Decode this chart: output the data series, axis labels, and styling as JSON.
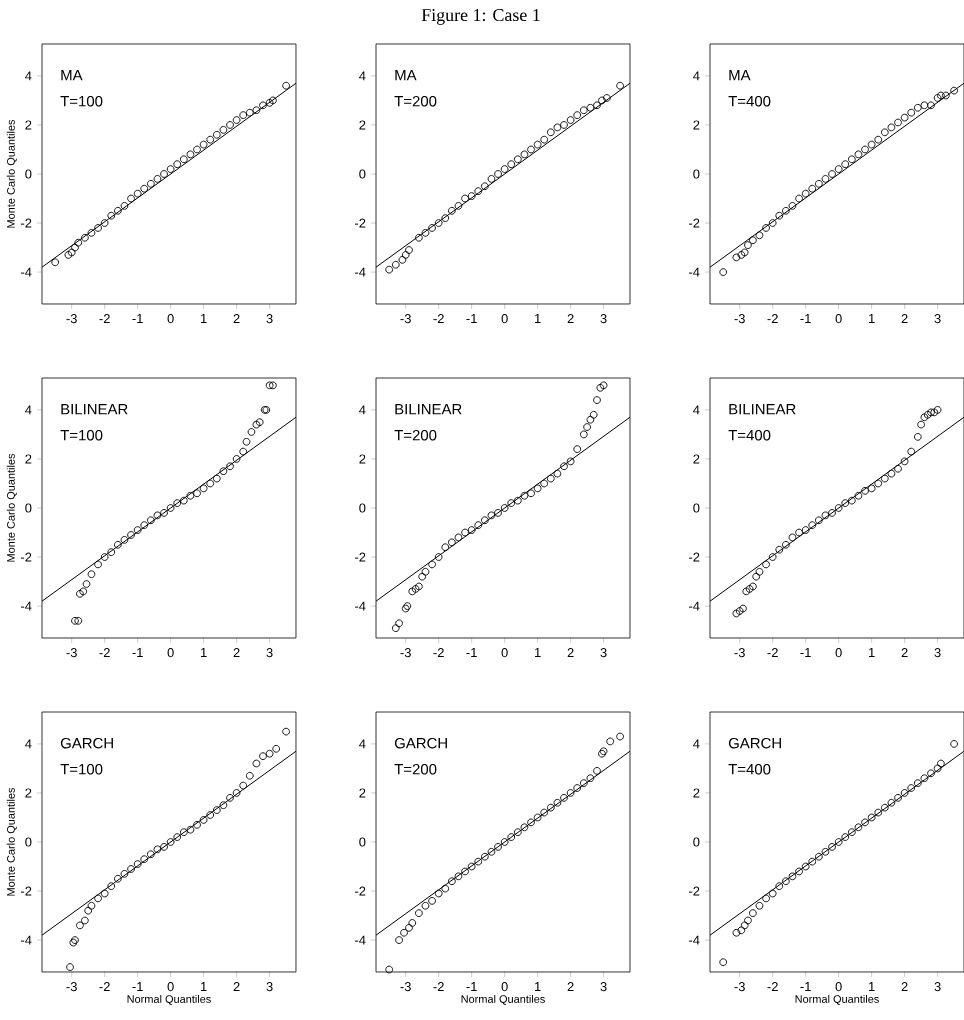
{
  "chart_data": [
    {
      "type": "scatter",
      "ylabel": "Monte Carlo Quantiles",
      "annotations": [
        "MA",
        "T=100"
      ],
      "grid": false,
      "xlim": [
        -3.9,
        3.8
      ],
      "ylim": [
        -5.3,
        5.3
      ],
      "xticks": [
        -3,
        -2,
        -1,
        0,
        1,
        2,
        3
      ],
      "yticks": [
        -4,
        -2,
        0,
        2,
        4
      ],
      "series": [
        {
          "marker": "circle",
          "color": "#000000",
          "x": [
            -3.5,
            -3.1,
            -3.0,
            -2.9,
            -2.8,
            -2.6,
            -2.4,
            -2.2,
            -2.0,
            -1.8,
            -1.6,
            -1.4,
            -1.2,
            -1.0,
            -0.8,
            -0.6,
            -0.4,
            -0.2,
            0,
            0.2,
            0.4,
            0.6,
            0.8,
            1.0,
            1.2,
            1.4,
            1.6,
            1.8,
            2.0,
            2.2,
            2.4,
            2.6,
            2.8,
            3.0,
            3.1,
            3.5
          ],
          "values": [
            -3.6,
            -3.3,
            -3.2,
            -3.0,
            -2.8,
            -2.6,
            -2.4,
            -2.2,
            -2.0,
            -1.7,
            -1.5,
            -1.3,
            -1.0,
            -0.8,
            -0.6,
            -0.4,
            -0.2,
            0,
            0.2,
            0.4,
            0.6,
            0.8,
            1.0,
            1.2,
            1.4,
            1.6,
            1.8,
            2.0,
            2.2,
            2.4,
            2.5,
            2.6,
            2.8,
            2.9,
            3.0,
            3.6
          ]
        },
        {
          "type": "line",
          "marker": "none",
          "color": "#000000",
          "x": [
            -3.9,
            3.8
          ],
          "values": [
            -3.8,
            3.7
          ]
        }
      ]
    },
    {
      "type": "scatter",
      "title": "Figure 1: Case 1",
      "annotations": [
        "MA",
        "T=200"
      ],
      "grid": false,
      "xlim": [
        -3.9,
        3.8
      ],
      "ylim": [
        -5.3,
        5.3
      ],
      "xticks": [
        -3,
        -2,
        -1,
        0,
        1,
        2,
        3
      ],
      "yticks": [
        -4,
        -2,
        0,
        2,
        4
      ],
      "series": [
        {
          "marker": "circle",
          "color": "#000000",
          "x": [
            -3.5,
            -3.3,
            -3.1,
            -3.0,
            -2.9,
            -2.6,
            -2.4,
            -2.2,
            -2.0,
            -1.8,
            -1.6,
            -1.4,
            -1.2,
            -1.0,
            -0.8,
            -0.6,
            -0.4,
            -0.2,
            0,
            0.2,
            0.4,
            0.6,
            0.8,
            1.0,
            1.2,
            1.4,
            1.6,
            1.8,
            2.0,
            2.2,
            2.4,
            2.6,
            2.8,
            2.95,
            3.1,
            3.5
          ],
          "values": [
            -3.9,
            -3.7,
            -3.5,
            -3.3,
            -3.1,
            -2.6,
            -2.4,
            -2.2,
            -2.0,
            -1.8,
            -1.5,
            -1.3,
            -1.0,
            -0.9,
            -0.7,
            -0.5,
            -0.2,
            0,
            0.2,
            0.4,
            0.6,
            0.8,
            1.0,
            1.2,
            1.4,
            1.7,
            1.9,
            2.0,
            2.2,
            2.4,
            2.6,
            2.7,
            2.8,
            3.0,
            3.1,
            3.6
          ]
        },
        {
          "type": "line",
          "marker": "none",
          "color": "#000000",
          "x": [
            -3.9,
            3.8
          ],
          "values": [
            -3.8,
            3.7
          ]
        }
      ]
    },
    {
      "type": "scatter",
      "annotations": [
        "MA",
        "T=400"
      ],
      "grid": false,
      "xlim": [
        -3.9,
        3.8
      ],
      "ylim": [
        -5.3,
        5.3
      ],
      "xticks": [
        -3,
        -2,
        -1,
        0,
        1,
        2,
        3
      ],
      "yticks": [
        -4,
        -2,
        0,
        2,
        4
      ],
      "series": [
        {
          "marker": "circle",
          "color": "#000000",
          "x": [
            -3.5,
            -3.1,
            -2.95,
            -2.85,
            -2.75,
            -2.6,
            -2.4,
            -2.2,
            -2.0,
            -1.8,
            -1.6,
            -1.4,
            -1.2,
            -1.0,
            -0.8,
            -0.6,
            -0.4,
            -0.2,
            0,
            0.2,
            0.4,
            0.6,
            0.8,
            1.0,
            1.2,
            1.4,
            1.6,
            1.8,
            2.0,
            2.2,
            2.4,
            2.6,
            2.8,
            3.0,
            3.1,
            3.25,
            3.5
          ],
          "values": [
            -4.0,
            -3.4,
            -3.3,
            -3.2,
            -2.9,
            -2.7,
            -2.5,
            -2.2,
            -2.0,
            -1.7,
            -1.5,
            -1.3,
            -1.0,
            -0.8,
            -0.6,
            -0.4,
            -0.2,
            0,
            0.2,
            0.4,
            0.6,
            0.8,
            1.0,
            1.2,
            1.4,
            1.7,
            1.9,
            2.1,
            2.3,
            2.5,
            2.7,
            2.8,
            2.8,
            3.1,
            3.2,
            3.2,
            3.4
          ]
        },
        {
          "type": "line",
          "marker": "none",
          "color": "#000000",
          "x": [
            -3.9,
            3.8
          ],
          "values": [
            -3.8,
            3.7
          ]
        }
      ]
    },
    {
      "type": "scatter",
      "ylabel": "Monte Carlo Quantiles",
      "annotations": [
        "BILINEAR",
        "T=100"
      ],
      "grid": false,
      "xlim": [
        -3.9,
        3.8
      ],
      "ylim": [
        -5.3,
        5.3
      ],
      "xticks": [
        -3,
        -2,
        -1,
        0,
        1,
        2,
        3
      ],
      "yticks": [
        -4,
        -2,
        0,
        2,
        4
      ],
      "series": [
        {
          "marker": "circle",
          "color": "#000000",
          "x": [
            -2.9,
            -2.8,
            -2.75,
            -2.65,
            -2.55,
            -2.4,
            -2.2,
            -2.0,
            -1.8,
            -1.6,
            -1.4,
            -1.2,
            -1.0,
            -0.8,
            -0.6,
            -0.4,
            -0.2,
            0,
            0.2,
            0.4,
            0.6,
            0.8,
            1.0,
            1.2,
            1.4,
            1.6,
            1.8,
            2.0,
            2.2,
            2.3,
            2.45,
            2.6,
            2.7,
            2.85,
            2.9,
            3.0,
            3.1
          ],
          "values": [
            -4.6,
            -4.6,
            -3.5,
            -3.4,
            -3.1,
            -2.7,
            -2.3,
            -2.0,
            -1.8,
            -1.5,
            -1.3,
            -1.1,
            -0.9,
            -0.7,
            -0.5,
            -0.3,
            -0.2,
            0,
            0.2,
            0.3,
            0.5,
            0.6,
            0.8,
            1.0,
            1.2,
            1.5,
            1.7,
            2.0,
            2.3,
            2.7,
            3.1,
            3.4,
            3.5,
            4.0,
            4.0,
            5.0,
            5.0
          ]
        },
        {
          "type": "line",
          "marker": "none",
          "color": "#000000",
          "x": [
            -3.9,
            3.8
          ],
          "values": [
            -3.8,
            3.7
          ]
        }
      ]
    },
    {
      "type": "scatter",
      "annotations": [
        "BILINEAR",
        "T=200"
      ],
      "grid": false,
      "xlim": [
        -3.9,
        3.8
      ],
      "ylim": [
        -5.3,
        5.3
      ],
      "xticks": [
        -3,
        -2,
        -1,
        0,
        1,
        2,
        3
      ],
      "yticks": [
        -4,
        -2,
        0,
        2,
        4
      ],
      "series": [
        {
          "marker": "circle",
          "color": "#000000",
          "x": [
            -3.3,
            -3.2,
            -3.0,
            -2.95,
            -2.8,
            -2.7,
            -2.6,
            -2.5,
            -2.4,
            -2.2,
            -2.0,
            -1.8,
            -1.6,
            -1.4,
            -1.2,
            -1.0,
            -0.8,
            -0.6,
            -0.4,
            -0.2,
            0,
            0.2,
            0.4,
            0.6,
            0.8,
            1.0,
            1.2,
            1.4,
            1.6,
            1.8,
            2.0,
            2.2,
            2.4,
            2.5,
            2.6,
            2.7,
            2.8,
            2.9,
            3.0
          ],
          "values": [
            -4.9,
            -4.7,
            -4.1,
            -4.0,
            -3.4,
            -3.3,
            -3.2,
            -2.8,
            -2.6,
            -2.3,
            -2.0,
            -1.6,
            -1.4,
            -1.2,
            -1.0,
            -0.9,
            -0.7,
            -0.5,
            -0.3,
            -0.2,
            0,
            0.2,
            0.3,
            0.5,
            0.6,
            0.8,
            1.0,
            1.2,
            1.4,
            1.7,
            1.9,
            2.4,
            3.0,
            3.3,
            3.6,
            3.8,
            4.4,
            4.9,
            5.0
          ]
        },
        {
          "type": "line",
          "marker": "none",
          "color": "#000000",
          "x": [
            -3.9,
            3.8
          ],
          "values": [
            -3.8,
            3.7
          ]
        }
      ]
    },
    {
      "type": "scatter",
      "annotations": [
        "BILINEAR",
        "T=400"
      ],
      "grid": false,
      "xlim": [
        -3.9,
        3.8
      ],
      "ylim": [
        -5.3,
        5.3
      ],
      "xticks": [
        -3,
        -2,
        -1,
        0,
        1,
        2,
        3
      ],
      "yticks": [
        -4,
        -2,
        0,
        2,
        4
      ],
      "series": [
        {
          "marker": "circle",
          "color": "#000000",
          "x": [
            -3.1,
            -3.0,
            -2.9,
            -2.8,
            -2.7,
            -2.6,
            -2.5,
            -2.4,
            -2.2,
            -2.0,
            -1.8,
            -1.6,
            -1.4,
            -1.2,
            -1.0,
            -0.8,
            -0.6,
            -0.4,
            -0.2,
            0,
            0.2,
            0.4,
            0.6,
            0.8,
            1.0,
            1.2,
            1.4,
            1.6,
            1.8,
            2.0,
            2.2,
            2.4,
            2.5,
            2.6,
            2.7,
            2.8,
            2.9,
            3.0
          ],
          "values": [
            -4.3,
            -4.2,
            -4.1,
            -3.4,
            -3.3,
            -3.2,
            -2.8,
            -2.6,
            -2.3,
            -2.0,
            -1.7,
            -1.5,
            -1.2,
            -1.0,
            -0.9,
            -0.7,
            -0.5,
            -0.3,
            -0.2,
            0,
            0.2,
            0.3,
            0.5,
            0.7,
            0.8,
            1.0,
            1.2,
            1.4,
            1.6,
            1.9,
            2.3,
            2.9,
            3.4,
            3.7,
            3.8,
            3.9,
            3.9,
            4.0
          ]
        },
        {
          "type": "line",
          "marker": "none",
          "color": "#000000",
          "x": [
            -3.9,
            3.8
          ],
          "values": [
            -3.8,
            3.7
          ]
        }
      ]
    },
    {
      "type": "scatter",
      "xlabel": "Normal Quantiles",
      "ylabel": "Monte Carlo Quantiles",
      "annotations": [
        "GARCH",
        "T=100"
      ],
      "grid": false,
      "xlim": [
        -3.9,
        3.8
      ],
      "ylim": [
        -5.3,
        5.3
      ],
      "xticks": [
        -3,
        -2,
        -1,
        0,
        1,
        2,
        3
      ],
      "yticks": [
        -4,
        -2,
        0,
        2,
        4
      ],
      "series": [
        {
          "marker": "circle",
          "color": "#000000",
          "x": [
            -3.05,
            -2.95,
            -2.9,
            -2.75,
            -2.6,
            -2.5,
            -2.4,
            -2.2,
            -2.0,
            -1.8,
            -1.6,
            -1.4,
            -1.2,
            -1.0,
            -0.8,
            -0.6,
            -0.4,
            -0.2,
            0,
            0.2,
            0.4,
            0.6,
            0.8,
            1.0,
            1.2,
            1.4,
            1.6,
            1.8,
            2.0,
            2.2,
            2.4,
            2.6,
            2.8,
            3.0,
            3.2,
            3.5
          ],
          "values": [
            -5.1,
            -4.1,
            -4.0,
            -3.4,
            -3.2,
            -2.8,
            -2.6,
            -2.3,
            -2.1,
            -1.8,
            -1.5,
            -1.3,
            -1.1,
            -0.9,
            -0.7,
            -0.5,
            -0.3,
            -0.2,
            0,
            0.2,
            0.4,
            0.5,
            0.7,
            0.9,
            1.1,
            1.3,
            1.5,
            1.8,
            2.0,
            2.3,
            2.7,
            3.2,
            3.5,
            3.6,
            3.8,
            4.5
          ]
        },
        {
          "type": "line",
          "marker": "none",
          "color": "#000000",
          "x": [
            -3.9,
            3.8
          ],
          "values": [
            -3.8,
            3.7
          ]
        }
      ]
    },
    {
      "type": "scatter",
      "xlabel": "Normal Quantiles",
      "annotations": [
        "GARCH",
        "T=200"
      ],
      "grid": false,
      "xlim": [
        -3.9,
        3.8
      ],
      "ylim": [
        -5.3,
        5.3
      ],
      "xticks": [
        -3,
        -2,
        -1,
        0,
        1,
        2,
        3
      ],
      "yticks": [
        -4,
        -2,
        0,
        2,
        4
      ],
      "series": [
        {
          "marker": "circle",
          "color": "#000000",
          "x": [
            -3.5,
            -3.2,
            -3.05,
            -2.9,
            -2.8,
            -2.6,
            -2.4,
            -2.2,
            -2.0,
            -1.8,
            -1.6,
            -1.4,
            -1.2,
            -1.0,
            -0.8,
            -0.6,
            -0.4,
            -0.2,
            0,
            0.2,
            0.4,
            0.6,
            0.8,
            1.0,
            1.2,
            1.4,
            1.6,
            1.8,
            2.0,
            2.2,
            2.4,
            2.6,
            2.8,
            2.95,
            3.0,
            3.2,
            3.5
          ],
          "values": [
            -5.2,
            -4.0,
            -3.7,
            -3.5,
            -3.3,
            -2.9,
            -2.6,
            -2.4,
            -2.1,
            -1.9,
            -1.6,
            -1.4,
            -1.2,
            -1.0,
            -0.8,
            -0.6,
            -0.4,
            -0.2,
            0,
            0.2,
            0.4,
            0.6,
            0.8,
            1.0,
            1.2,
            1.4,
            1.6,
            1.8,
            2.0,
            2.2,
            2.4,
            2.6,
            2.9,
            3.6,
            3.7,
            4.1,
            4.3
          ]
        },
        {
          "type": "line",
          "marker": "none",
          "color": "#000000",
          "x": [
            -3.9,
            3.8
          ],
          "values": [
            -3.8,
            3.7
          ]
        }
      ]
    },
    {
      "type": "scatter",
      "xlabel": "Normal Quantiles",
      "annotations": [
        "GARCH",
        "T=400"
      ],
      "grid": false,
      "xlim": [
        -3.9,
        3.8
      ],
      "ylim": [
        -5.3,
        5.3
      ],
      "xticks": [
        -3,
        -2,
        -1,
        0,
        1,
        2,
        3
      ],
      "yticks": [
        -4,
        -2,
        0,
        2,
        4
      ],
      "series": [
        {
          "marker": "circle",
          "color": "#000000",
          "x": [
            -3.5,
            -3.1,
            -2.95,
            -2.85,
            -2.75,
            -2.6,
            -2.4,
            -2.2,
            -2.0,
            -1.8,
            -1.6,
            -1.4,
            -1.2,
            -1.0,
            -0.8,
            -0.6,
            -0.4,
            -0.2,
            0,
            0.2,
            0.4,
            0.6,
            0.8,
            1.0,
            1.2,
            1.4,
            1.6,
            1.8,
            2.0,
            2.2,
            2.4,
            2.6,
            2.8,
            3.0,
            3.1,
            3.5
          ],
          "values": [
            -4.9,
            -3.7,
            -3.6,
            -3.4,
            -3.2,
            -2.9,
            -2.6,
            -2.3,
            -2.1,
            -1.8,
            -1.6,
            -1.4,
            -1.2,
            -1.0,
            -0.8,
            -0.6,
            -0.4,
            -0.2,
            0,
            0.2,
            0.4,
            0.6,
            0.8,
            1.0,
            1.2,
            1.4,
            1.6,
            1.8,
            2.0,
            2.2,
            2.4,
            2.6,
            2.8,
            3.0,
            3.2,
            4.0
          ]
        },
        {
          "type": "line",
          "marker": "none",
          "color": "#000000",
          "x": [
            -3.9,
            3.8
          ],
          "values": [
            -3.8,
            3.7
          ]
        }
      ]
    }
  ]
}
